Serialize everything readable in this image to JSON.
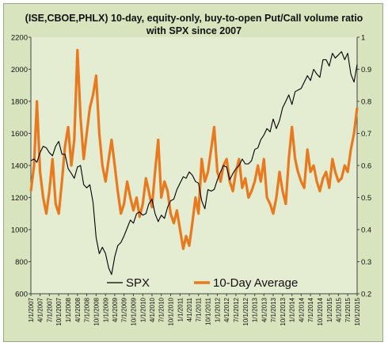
{
  "chart_data": {
    "type": "line",
    "title": "(ISE,CBOE,PHLX) 10-day, equity-only, buy-to-open Put/Call volume ratio",
    "subtitle": "with SPX since 2007",
    "x_ticks": [
      "1/1/2007",
      "4/1/2007",
      "7/1/2007",
      "10/1/2007",
      "1/1/2008",
      "4/1/2008",
      "7/1/2008",
      "10/1/2008",
      "1/1/2009",
      "4/1/2009",
      "7/1/2009",
      "10/1/2009",
      "1/1/2010",
      "4/1/2010",
      "7/1/2010",
      "10/1/2010",
      "1/1/2011",
      "4/1/2011",
      "7/1/2011",
      "10/1/2011",
      "1/1/2012",
      "4/1/2012",
      "7/1/2012",
      "10/1/2012",
      "1/1/2013",
      "4/1/2013",
      "7/1/2013",
      "10/1/2013",
      "1/1/2014",
      "4/1/2014",
      "7/1/2014",
      "10/1/2014",
      "1/1/2015",
      "4/1/2015",
      "7/1/2015",
      "10/1/2015"
    ],
    "y_left": {
      "ticks": [
        600,
        800,
        1000,
        1200,
        1400,
        1600,
        1800,
        2000,
        2200
      ],
      "ylim": [
        600,
        2200
      ]
    },
    "y_right": {
      "ticks": [
        0.2,
        0.3,
        0.4,
        0.5,
        0.6,
        0.7,
        0.8,
        0.9,
        1
      ],
      "ylim": [
        0.2,
        1.0
      ]
    },
    "legend_position": "bottom-center",
    "series": [
      {
        "name": "SPX",
        "axis": "left",
        "color": "#000000",
        "x": [
          "2007-01",
          "2007-02",
          "2007-03",
          "2007-04",
          "2007-05",
          "2007-06",
          "2007-07",
          "2007-08",
          "2007-09",
          "2007-10",
          "2007-11",
          "2007-12",
          "2008-01",
          "2008-02",
          "2008-03",
          "2008-04",
          "2008-05",
          "2008-06",
          "2008-07",
          "2008-08",
          "2008-09",
          "2008-10",
          "2008-11",
          "2008-12",
          "2009-01",
          "2009-02",
          "2009-03",
          "2009-04",
          "2009-05",
          "2009-06",
          "2009-07",
          "2009-08",
          "2009-09",
          "2009-10",
          "2009-11",
          "2009-12",
          "2010-01",
          "2010-02",
          "2010-03",
          "2010-04",
          "2010-05",
          "2010-06",
          "2010-07",
          "2010-08",
          "2010-09",
          "2010-10",
          "2010-11",
          "2010-12",
          "2011-01",
          "2011-02",
          "2011-03",
          "2011-04",
          "2011-05",
          "2011-06",
          "2011-07",
          "2011-08",
          "2011-09",
          "2011-10",
          "2011-11",
          "2011-12",
          "2012-01",
          "2012-02",
          "2012-03",
          "2012-04",
          "2012-05",
          "2012-06",
          "2012-07",
          "2012-08",
          "2012-09",
          "2012-10",
          "2012-11",
          "2012-12",
          "2013-01",
          "2013-02",
          "2013-03",
          "2013-04",
          "2013-05",
          "2013-06",
          "2013-07",
          "2013-08",
          "2013-09",
          "2013-10",
          "2013-11",
          "2013-12",
          "2014-01",
          "2014-02",
          "2014-03",
          "2014-04",
          "2014-05",
          "2014-06",
          "2014-07",
          "2014-08",
          "2014-09",
          "2014-10",
          "2014-11",
          "2014-12",
          "2015-01",
          "2015-02",
          "2015-03",
          "2015-04",
          "2015-05",
          "2015-06",
          "2015-07",
          "2015-08",
          "2015-09",
          "2015-10"
        ],
        "y": [
          1430,
          1440,
          1420,
          1480,
          1520,
          1510,
          1480,
          1460,
          1520,
          1550,
          1470,
          1470,
          1380,
          1350,
          1320,
          1390,
          1400,
          1280,
          1260,
          1280,
          1170,
          950,
          850,
          890,
          850,
          760,
          720,
          830,
          900,
          920,
          960,
          1010,
          1060,
          1040,
          1100,
          1110,
          1090,
          1100,
          1160,
          1190,
          1100,
          1050,
          1090,
          1070,
          1140,
          1180,
          1190,
          1250,
          1290,
          1330,
          1320,
          1360,
          1340,
          1300,
          1290,
          1180,
          1130,
          1250,
          1240,
          1250,
          1310,
          1360,
          1400,
          1390,
          1310,
          1350,
          1380,
          1400,
          1440,
          1410,
          1410,
          1430,
          1500,
          1510,
          1560,
          1590,
          1630,
          1610,
          1690,
          1630,
          1680,
          1760,
          1800,
          1840,
          1780,
          1860,
          1870,
          1880,
          1920,
          1960,
          1930,
          2000,
          1970,
          1950,
          2060,
          2060,
          2020,
          2100,
          2070,
          2090,
          2110,
          2060,
          2100,
          1970,
          1920,
          2030
        ]
      },
      {
        "name": "10-Day Average",
        "axis": "right",
        "color": "#e8791e",
        "x": [
          "2007-01",
          "2007-02",
          "2007-03",
          "2007-04",
          "2007-05",
          "2007-06",
          "2007-07",
          "2007-08",
          "2007-09",
          "2007-10",
          "2007-11",
          "2007-12",
          "2008-01",
          "2008-02",
          "2008-03",
          "2008-04",
          "2008-05",
          "2008-06",
          "2008-07",
          "2008-08",
          "2008-09",
          "2008-10",
          "2008-11",
          "2008-12",
          "2009-01",
          "2009-02",
          "2009-03",
          "2009-04",
          "2009-05",
          "2009-06",
          "2009-07",
          "2009-08",
          "2009-09",
          "2009-10",
          "2009-11",
          "2009-12",
          "2010-01",
          "2010-02",
          "2010-03",
          "2010-04",
          "2010-05",
          "2010-06",
          "2010-07",
          "2010-08",
          "2010-09",
          "2010-10",
          "2010-11",
          "2010-12",
          "2011-01",
          "2011-02",
          "2011-03",
          "2011-04",
          "2011-05",
          "2011-06",
          "2011-07",
          "2011-08",
          "2011-09",
          "2011-10",
          "2011-11",
          "2011-12",
          "2012-01",
          "2012-02",
          "2012-03",
          "2012-04",
          "2012-05",
          "2012-06",
          "2012-07",
          "2012-08",
          "2012-09",
          "2012-10",
          "2012-11",
          "2012-12",
          "2013-01",
          "2013-02",
          "2013-03",
          "2013-04",
          "2013-05",
          "2013-06",
          "2013-07",
          "2013-08",
          "2013-09",
          "2013-10",
          "2013-11",
          "2013-12",
          "2014-01",
          "2014-02",
          "2014-03",
          "2014-04",
          "2014-05",
          "2014-06",
          "2014-07",
          "2014-08",
          "2014-09",
          "2014-10",
          "2014-11",
          "2014-12",
          "2015-01",
          "2015-02",
          "2015-03",
          "2015-04",
          "2015-05",
          "2015-06",
          "2015-07",
          "2015-08",
          "2015-09",
          "2015-10"
        ],
        "y": [
          0.52,
          0.6,
          0.8,
          0.58,
          0.5,
          0.45,
          0.52,
          0.62,
          0.48,
          0.45,
          0.55,
          0.66,
          0.72,
          0.6,
          0.68,
          0.96,
          0.75,
          0.62,
          0.7,
          0.78,
          0.82,
          0.88,
          0.7,
          0.6,
          0.55,
          0.62,
          0.68,
          0.6,
          0.52,
          0.45,
          0.48,
          0.55,
          0.5,
          0.46,
          0.5,
          0.44,
          0.48,
          0.56,
          0.52,
          0.47,
          0.58,
          0.68,
          0.5,
          0.55,
          0.52,
          0.45,
          0.42,
          0.46,
          0.4,
          0.34,
          0.38,
          0.35,
          0.42,
          0.5,
          0.45,
          0.62,
          0.55,
          0.58,
          0.65,
          0.72,
          0.58,
          0.55,
          0.6,
          0.62,
          0.55,
          0.52,
          0.58,
          0.62,
          0.53,
          0.56,
          0.5,
          0.52,
          0.55,
          0.6,
          0.55,
          0.62,
          0.5,
          0.48,
          0.45,
          0.5,
          0.58,
          0.52,
          0.48,
          0.62,
          0.72,
          0.62,
          0.58,
          0.55,
          0.53,
          0.65,
          0.58,
          0.6,
          0.55,
          0.52,
          0.56,
          0.58,
          0.53,
          0.62,
          0.58,
          0.55,
          0.56,
          0.6,
          0.58,
          0.65,
          0.7,
          0.78
        ]
      }
    ]
  }
}
